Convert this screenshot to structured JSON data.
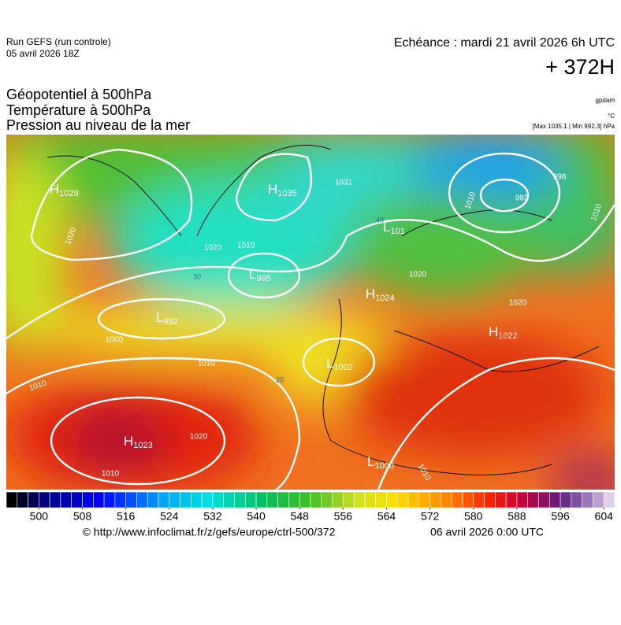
{
  "header": {
    "run": "Run GEFS (run controle)",
    "run_date": "05 avril 2026 18Z",
    "valid": "Echéance : mardi 21 avril 2026 6h UTC",
    "lead": "+ 372H",
    "titles": [
      "Géopotentiel à 500hPa",
      "Température à 500hPa",
      "Pression au niveau de la mer"
    ],
    "units": [
      "gpdam",
      "°C",
      "[Max 1035.1 | Min 992.3] hPa"
    ]
  },
  "map": {
    "centers": [
      {
        "type": "H",
        "value": 1029
      },
      {
        "type": "H",
        "value": 1035
      },
      {
        "type": "L",
        "value": 995
      },
      {
        "type": "L",
        "value": 992
      },
      {
        "type": "H",
        "value": 1024
      },
      {
        "type": "L",
        "value": 101
      },
      {
        "type": "L",
        "value": 1002
      },
      {
        "type": "H",
        "value": 1022
      },
      {
        "type": "H",
        "value": 1023
      },
      {
        "type": "L",
        "value": 1000
      }
    ],
    "isobar_labels": [
      1020,
      1031,
      998,
      992,
      1010,
      1020,
      1010,
      1010,
      1000,
      1010,
      1010,
      1020,
      1020,
      1020,
      1010,
      1010
    ],
    "temperature_labels": [
      30,
      20,
      40
    ]
  },
  "colorbar": {
    "lim": [
      494,
      606
    ],
    "step": 2,
    "ticks": [
      500,
      508,
      516,
      524,
      532,
      540,
      548,
      556,
      564,
      572,
      580,
      588,
      596,
      604
    ]
  },
  "footer": {
    "source": "© http://www.infoclimat.fr/z/gefs/europe/ctrl-500/372",
    "analysis": "06 avril 2026  0:00 UTC"
  }
}
